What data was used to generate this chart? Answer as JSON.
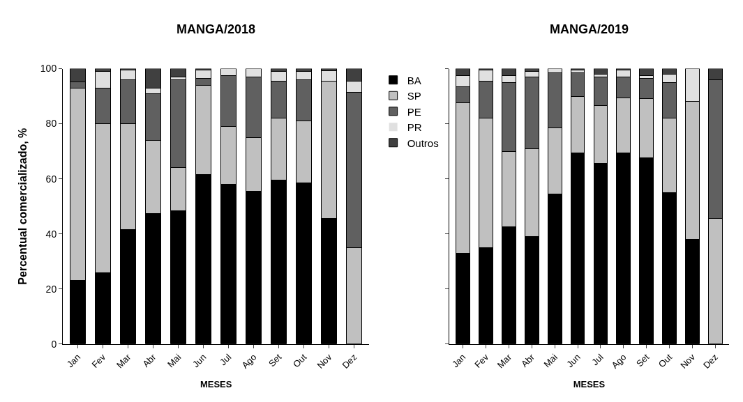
{
  "chart_data": [
    {
      "type": "bar",
      "title": "MANGA/2018",
      "xlabel": "MESES",
      "ylabel": "Percentual comercializado, %",
      "stacked": true,
      "legend": "top right",
      "ylim": [
        0,
        100
      ],
      "yticks": [
        0,
        20,
        40,
        60,
        80,
        100
      ],
      "categories": [
        "Jan",
        "Fev",
        "Mar",
        "Abr",
        "Mai",
        "Jun",
        "Jul",
        "Ago",
        "Set",
        "Out",
        "Nov",
        "Dez"
      ],
      "series": [
        {
          "name": "BA",
          "color": "#000000",
          "values": [
            23,
            26,
            41.5,
            47.5,
            48.5,
            61.5,
            58,
            55.5,
            59.5,
            58.5,
            45.5,
            0
          ]
        },
        {
          "name": "SP",
          "color": "#c0c0c0",
          "values": [
            70,
            54,
            38.5,
            26.5,
            15.5,
            32.5,
            21,
            19.5,
            22.5,
            22.5,
            50,
            35
          ]
        },
        {
          "name": "PE",
          "color": "#606060",
          "values": [
            2.3,
            13,
            16,
            17,
            32,
            2.5,
            18.5,
            22,
            13.5,
            15,
            0,
            56.5
          ]
        },
        {
          "name": "PR",
          "color": "#e0e0e0",
          "values": [
            0,
            6,
            3.5,
            2,
            1,
            3,
            2.5,
            3,
            3.5,
            3,
            3.8,
            4
          ]
        },
        {
          "name": "Outros",
          "color": "#404040",
          "values": [
            4.7,
            1,
            0.5,
            7,
            3,
            0.5,
            0,
            0,
            1,
            1,
            0.7,
            4.5
          ]
        }
      ]
    },
    {
      "type": "bar",
      "title": "MANGA/2019",
      "xlabel": "MESES",
      "stacked": true,
      "ylim": [
        0,
        100
      ],
      "yticks": [
        0,
        20,
        40,
        60,
        80,
        100
      ],
      "tick_labels": "x",
      "categories": [
        "Jan",
        "Fev",
        "Mar",
        "Abr",
        "Mai",
        "Jun",
        "Jul",
        "Ago",
        "Set",
        "Out",
        "Nov",
        "Dez"
      ],
      "series": [
        {
          "color": "#000000",
          "values": [
            33,
            35,
            42.5,
            39,
            54.5,
            69.5,
            65.5,
            69.5,
            67.5,
            55,
            38,
            0
          ]
        },
        {
          "color": "#c0c0c0",
          "values": [
            54.5,
            47,
            27.5,
            32,
            24,
            20.5,
            21,
            20,
            21.5,
            27,
            50,
            45.5
          ]
        },
        {
          "color": "#606060",
          "values": [
            6,
            13.5,
            25,
            26,
            20,
            8.5,
            10.5,
            7.5,
            7.5,
            13,
            0,
            50.5
          ]
        },
        {
          "color": "#e0e0e0",
          "values": [
            4,
            4,
            2.5,
            2,
            1.5,
            1,
            1,
            2.5,
            1,
            3,
            12,
            0
          ]
        },
        {
          "color": "#404040",
          "values": [
            2.5,
            0.5,
            2.5,
            1,
            0,
            0.5,
            2,
            0.5,
            2.5,
            2,
            0,
            4
          ]
        }
      ]
    }
  ]
}
